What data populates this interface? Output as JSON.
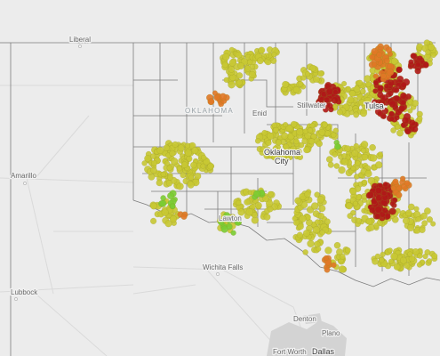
{
  "map": {
    "state_label": "OKLAHOMA",
    "places": [
      {
        "id": "liberal",
        "name": "Liberal"
      },
      {
        "id": "enid",
        "name": "Enid"
      },
      {
        "id": "stillwater",
        "name": "Stillwater"
      },
      {
        "id": "tulsa",
        "name": "Tulsa"
      },
      {
        "id": "okc",
        "name": "Oklahoma City",
        "lines": [
          "Oklahoma",
          "City"
        ]
      },
      {
        "id": "amarillo",
        "name": "Amarillo"
      },
      {
        "id": "lawton",
        "name": "Lawton"
      },
      {
        "id": "wichita-falls",
        "name": "Wichita Falls"
      },
      {
        "id": "lubbock",
        "name": "Lubbock"
      },
      {
        "id": "denton",
        "name": "Denton"
      },
      {
        "id": "plano",
        "name": "Plano"
      },
      {
        "id": "fort-worth",
        "name": "Fort Worth"
      },
      {
        "id": "dallas",
        "name": "Dallas"
      }
    ],
    "colors": {
      "background": "#ececec",
      "county_border": "#7d7d7d",
      "road": "#dcdcdc",
      "metro": "#cfcfcf",
      "marker_yellow": "#c8c833",
      "marker_orange": "#e07826",
      "marker_red": "#b01818",
      "marker_green": "#7acc33"
    }
  }
}
